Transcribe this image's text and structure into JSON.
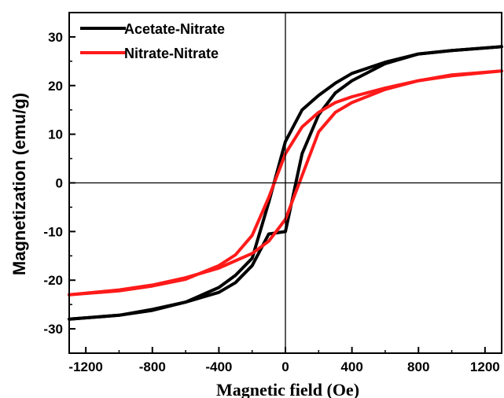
{
  "chart_data": {
    "type": "line",
    "xlabel": "Magnetic field (Oe)",
    "ylabel": "Magnetization (emu/g)",
    "xlim": [
      -1300,
      1300
    ],
    "ylim": [
      -35,
      35
    ],
    "xticks": [
      -1200,
      -800,
      -400,
      0,
      400,
      800,
      1200
    ],
    "xtick_labels": [
      "-1200",
      "-800",
      "-400",
      "0",
      "400",
      "800",
      "1200"
    ],
    "yticks": [
      -30,
      -20,
      -10,
      0,
      10,
      20,
      30
    ],
    "ytick_labels": [
      "-30",
      "-20",
      "-10",
      "0",
      "10",
      "20",
      "30"
    ],
    "zero_lines": true,
    "grid": false,
    "legend_position": "top-left",
    "series": [
      {
        "name": "Acetate-Nitrate",
        "color": "#000000",
        "branches": [
          {
            "x": [
              -1300,
              -1000,
              -800,
              -600,
              -400,
              -300,
              -200,
              -100,
              0,
              100,
              200,
              300,
              400,
              600,
              800,
              1000,
              1300
            ],
            "y": [
              -28,
              -27.2,
              -26,
              -24.5,
              -22.5,
              -20.5,
              -17,
              -10.5,
              -10,
              6,
              14,
              18.5,
              21,
              24.5,
              26.5,
              27.2,
              28
            ]
          },
          {
            "x": [
              1300,
              1000,
              800,
              600,
              400,
              300,
              200,
              100,
              0,
              -100,
              -200,
              -300,
              -400,
              -600,
              -800,
              -1000,
              -1300
            ],
            "y": [
              28,
              27.2,
              26.5,
              24.8,
              22.5,
              20.5,
              18,
              15,
              8.5,
              -4,
              -15.5,
              -19,
              -21.5,
              -24.5,
              -26.2,
              -27.2,
              -28
            ]
          }
        ]
      },
      {
        "name": "Nitrate-Nitrate",
        "color": "#ff1a1a",
        "branches": [
          {
            "x": [
              -1300,
              -1000,
              -800,
              -600,
              -400,
              -300,
              -200,
              -100,
              0,
              100,
              200,
              300,
              400,
              600,
              800,
              1000,
              1300
            ],
            "y": [
              -23,
              -22,
              -21,
              -19.5,
              -17.5,
              -16,
              -14.5,
              -12,
              -7.5,
              1.5,
              10.5,
              14.5,
              16.5,
              19.2,
              21,
              22,
              23
            ]
          },
          {
            "x": [
              1300,
              1000,
              800,
              600,
              400,
              300,
              200,
              100,
              0,
              -100,
              -200,
              -300,
              -400,
              -600,
              -800,
              -1000,
              -1300
            ],
            "y": [
              23,
              22.2,
              21,
              19.5,
              17.7,
              16.5,
              14.5,
              11.5,
              6,
              -3,
              -10.8,
              -14.8,
              -17,
              -19.8,
              -21.2,
              -22.2,
              -23
            ]
          }
        ]
      }
    ]
  }
}
